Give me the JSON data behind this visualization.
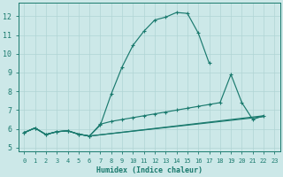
{
  "xlabel": "Humidex (Indice chaleur)",
  "xlim": [
    -0.5,
    23.5
  ],
  "ylim": [
    4.8,
    12.7
  ],
  "xticks": [
    0,
    1,
    2,
    3,
    4,
    5,
    6,
    7,
    8,
    9,
    10,
    11,
    12,
    13,
    14,
    15,
    16,
    17,
    18,
    19,
    20,
    21,
    22,
    23
  ],
  "yticks": [
    5,
    6,
    7,
    8,
    9,
    10,
    11,
    12
  ],
  "bg_color": "#cce8e8",
  "line_color": "#1a7a6e",
  "grid_color": "#b0d4d4",
  "line1_x": [
    0,
    1,
    2,
    3,
    4,
    5,
    6,
    7,
    8,
    9,
    10,
    11,
    12,
    13,
    14,
    15,
    16,
    17
  ],
  "line1_y": [
    5.8,
    6.05,
    5.7,
    5.85,
    5.9,
    5.72,
    5.62,
    6.2,
    7.85,
    9.3,
    10.45,
    11.2,
    11.8,
    11.95,
    12.2,
    12.15,
    11.1,
    9.5
  ],
  "line2_x": [
    0,
    1,
    2,
    3,
    4,
    5,
    6,
    7,
    8,
    9,
    10,
    11,
    12,
    13,
    14,
    15,
    16,
    17,
    18,
    19,
    20,
    21,
    22
  ],
  "line2_y": [
    5.8,
    6.05,
    5.7,
    5.85,
    5.9,
    5.72,
    5.62,
    6.25,
    6.4,
    6.5,
    6.6,
    6.7,
    6.8,
    6.9,
    7.0,
    7.1,
    7.2,
    7.3,
    7.4,
    8.9,
    7.4,
    6.5,
    6.7
  ],
  "line3_x": [
    0,
    1,
    2,
    3,
    4,
    5,
    6,
    22
  ],
  "line3_y": [
    5.8,
    6.05,
    5.7,
    5.85,
    5.9,
    5.72,
    5.62,
    6.7
  ],
  "line4_x": [
    0,
    1,
    2,
    3,
    4,
    5,
    6,
    22
  ],
  "line4_y": [
    5.8,
    6.05,
    5.7,
    5.85,
    5.9,
    5.72,
    5.62,
    6.65
  ]
}
